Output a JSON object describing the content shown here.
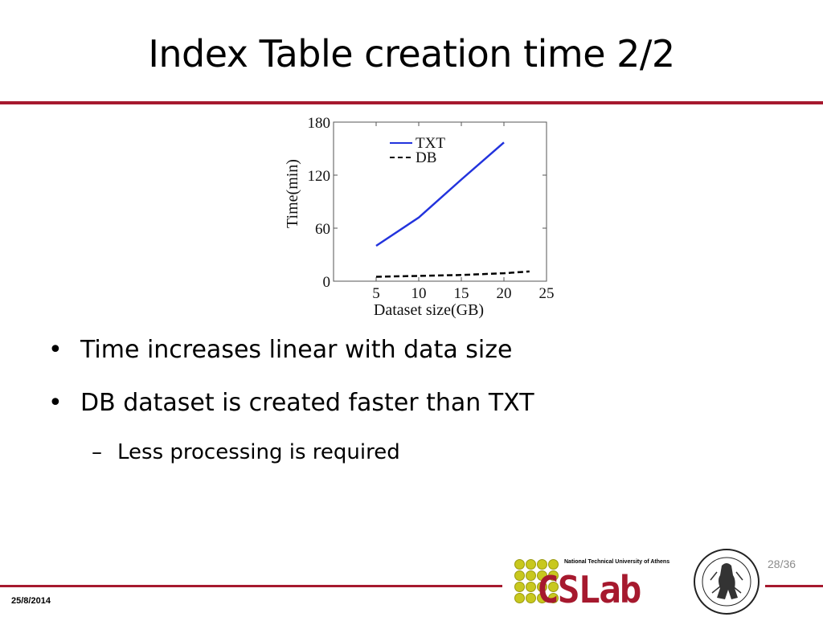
{
  "slide": {
    "title": "Index Table creation time 2/2",
    "bullets": [
      "Time increases linear with data size",
      "DB dataset is created faster than  TXT"
    ],
    "sub_bullets": [
      "Less processing is required"
    ],
    "date": "25/8/2014",
    "page": "28/36",
    "accent_color": "#a6192e"
  },
  "logo": {
    "university": "National Technical University of Athens",
    "lab": "CSLab"
  },
  "chart_data": {
    "type": "line",
    "xlabel": "Dataset size(GB)",
    "ylabel": "Time(min)",
    "xlim": [
      0,
      25
    ],
    "ylim": [
      0,
      180
    ],
    "xticks": [
      5,
      10,
      15,
      20,
      25
    ],
    "yticks": [
      0,
      60,
      120,
      180
    ],
    "legend_position": "top-left",
    "series": [
      {
        "name": "TXT",
        "color": "#2233dd",
        "dash": "solid",
        "x": [
          5,
          10,
          15,
          20
        ],
        "y": [
          40,
          72,
          115,
          157
        ]
      },
      {
        "name": "DB",
        "color": "#000000",
        "dash": "dashed",
        "x": [
          5,
          10,
          15,
          20,
          23
        ],
        "y": [
          5,
          6,
          7,
          9,
          11
        ]
      }
    ]
  }
}
